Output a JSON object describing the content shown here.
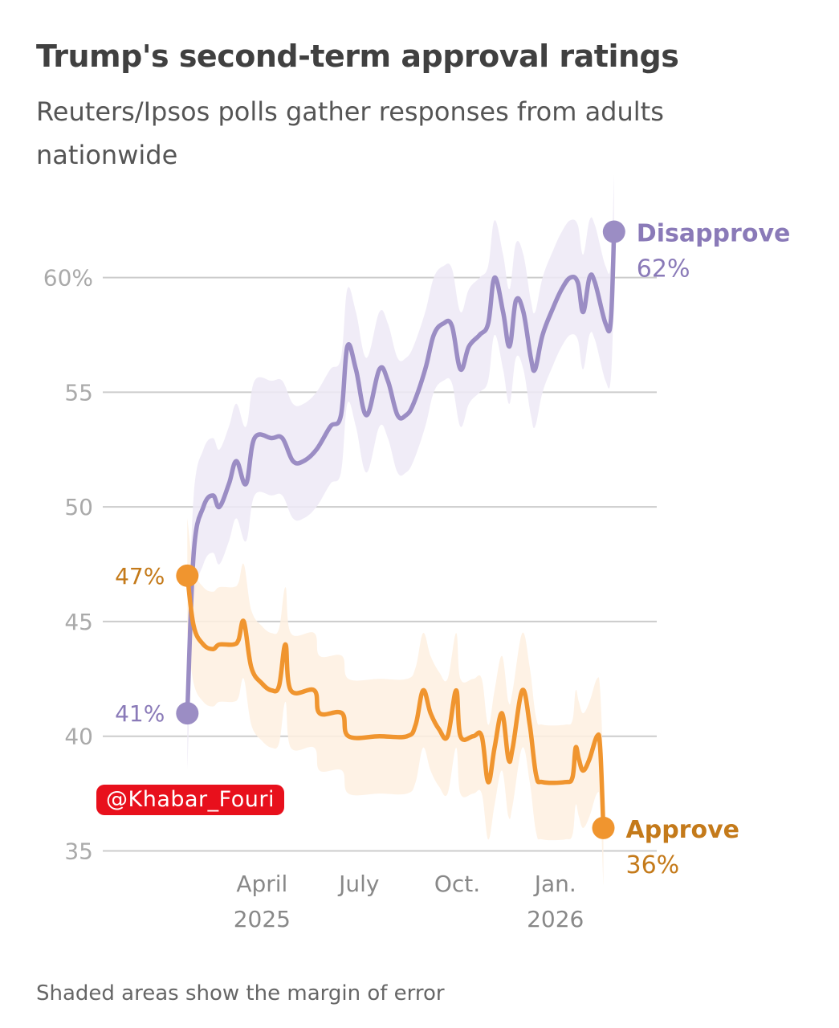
{
  "title": "Trump's second-term approval ratings",
  "subtitle": "Reuters/Ipsos polls gather responses from adults nationwide",
  "footnote": "Shaded areas show the margin of error",
  "watermark": "@Khabar_Fouri",
  "colors": {
    "disapprove": "#9b8dc4",
    "disapprove_band": "#ede9f6",
    "approve": "#f0952f",
    "approve_band": "#fef0e0",
    "approve_label": "#c47a1a",
    "disapprove_label": "#8a7ab8",
    "grid": "#cccccc"
  },
  "chart_data": {
    "type": "line",
    "x_unit": "date",
    "ylim": [
      34,
      63
    ],
    "yticks": [
      {
        "value": 60,
        "label": "60%"
      },
      {
        "value": 55,
        "label": "55"
      },
      {
        "value": 50,
        "label": "50"
      },
      {
        "value": 45,
        "label": "45"
      },
      {
        "value": 40,
        "label": "40"
      },
      {
        "value": 35,
        "label": "35"
      }
    ],
    "xlim": [
      "2025-01-20",
      "2026-03-25"
    ],
    "xticks": [
      {
        "date": "2025-04-01",
        "line1": "April",
        "line2": "2025"
      },
      {
        "date": "2025-07-01",
        "line1": "July",
        "line2": ""
      },
      {
        "date": "2025-10-01",
        "line1": "Oct.",
        "line2": ""
      },
      {
        "date": "2026-01-01",
        "line1": "Jan.",
        "line2": "2026"
      }
    ],
    "grid": true,
    "series": [
      {
        "name": "Disapprove",
        "end_label": "62%",
        "start_label": "41%",
        "margin_of_error": 2.5,
        "points": [
          [
            "2025-01-21",
            41
          ],
          [
            "2025-01-27",
            48
          ],
          [
            "2025-02-05",
            50
          ],
          [
            "2025-02-14",
            50.5
          ],
          [
            "2025-02-20",
            50
          ],
          [
            "2025-03-01",
            51
          ],
          [
            "2025-03-08",
            52
          ],
          [
            "2025-03-17",
            51
          ],
          [
            "2025-03-25",
            53
          ],
          [
            "2025-04-10",
            53
          ],
          [
            "2025-04-20",
            53
          ],
          [
            "2025-04-30",
            52
          ],
          [
            "2025-05-10",
            52
          ],
          [
            "2025-05-22",
            52.5
          ],
          [
            "2025-06-04",
            53.5
          ],
          [
            "2025-06-14",
            54
          ],
          [
            "2025-06-20",
            57
          ],
          [
            "2025-06-28",
            56
          ],
          [
            "2025-07-08",
            54
          ],
          [
            "2025-07-20",
            56
          ],
          [
            "2025-07-28",
            55.5
          ],
          [
            "2025-08-06",
            54
          ],
          [
            "2025-08-14",
            54
          ],
          [
            "2025-08-21",
            54.5
          ],
          [
            "2025-09-01",
            56
          ],
          [
            "2025-09-09",
            57.5
          ],
          [
            "2025-09-18",
            58
          ],
          [
            "2025-09-26",
            57.9
          ],
          [
            "2025-10-04",
            56
          ],
          [
            "2025-10-12",
            57
          ],
          [
            "2025-10-22",
            57.5
          ],
          [
            "2025-10-30",
            58
          ],
          [
            "2025-11-05",
            60
          ],
          [
            "2025-11-13",
            58.5
          ],
          [
            "2025-11-19",
            57
          ],
          [
            "2025-11-25",
            59
          ],
          [
            "2025-12-02",
            58.5
          ],
          [
            "2025-12-09",
            56.5
          ],
          [
            "2025-12-13",
            56
          ],
          [
            "2025-12-20",
            57.5
          ],
          [
            "2025-12-30",
            58.7
          ],
          [
            "2026-01-07",
            59.5
          ],
          [
            "2026-01-15",
            60
          ],
          [
            "2026-01-22",
            59.8
          ],
          [
            "2026-01-27",
            58.5
          ],
          [
            "2026-02-02",
            60
          ],
          [
            "2026-02-07",
            59.8
          ],
          [
            "2026-02-17",
            58
          ],
          [
            "2026-02-22",
            58.1
          ],
          [
            "2026-02-25",
            62
          ]
        ]
      },
      {
        "name": "Approve",
        "end_label": "36%",
        "start_label": "47%",
        "margin_of_error": 2.5,
        "points": [
          [
            "2025-01-21",
            47
          ],
          [
            "2025-01-27",
            44.8
          ],
          [
            "2025-02-05",
            44
          ],
          [
            "2025-02-14",
            43.8
          ],
          [
            "2025-02-20",
            44
          ],
          [
            "2025-03-05",
            44
          ],
          [
            "2025-03-10",
            44.2
          ],
          [
            "2025-03-15",
            45
          ],
          [
            "2025-03-22",
            43
          ],
          [
            "2025-04-01",
            42.3
          ],
          [
            "2025-04-10",
            42
          ],
          [
            "2025-04-17",
            42.2
          ],
          [
            "2025-04-23",
            44
          ],
          [
            "2025-04-28",
            42
          ],
          [
            "2025-05-20",
            42
          ],
          [
            "2025-05-25",
            41
          ],
          [
            "2025-06-15",
            41
          ],
          [
            "2025-06-21",
            40
          ],
          [
            "2025-07-20",
            40
          ],
          [
            "2025-08-15",
            40
          ],
          [
            "2025-08-23",
            40.5
          ],
          [
            "2025-08-30",
            42
          ],
          [
            "2025-09-06",
            41
          ],
          [
            "2025-09-14",
            40.3
          ],
          [
            "2025-09-22",
            40
          ],
          [
            "2025-09-30",
            42
          ],
          [
            "2025-10-04",
            40
          ],
          [
            "2025-10-16",
            40
          ],
          [
            "2025-10-24",
            40
          ],
          [
            "2025-10-30",
            38
          ],
          [
            "2025-11-05",
            39.5
          ],
          [
            "2025-11-12",
            41
          ],
          [
            "2025-11-18",
            39
          ],
          [
            "2025-11-22",
            39.5
          ],
          [
            "2025-12-01",
            42
          ],
          [
            "2025-12-08",
            40.5
          ],
          [
            "2025-12-14",
            38.3
          ],
          [
            "2025-12-20",
            38
          ],
          [
            "2026-01-10",
            38
          ],
          [
            "2026-01-17",
            38.2
          ],
          [
            "2026-01-20",
            39.5
          ],
          [
            "2026-01-23",
            39
          ],
          [
            "2026-01-27",
            38.5
          ],
          [
            "2026-02-02",
            39
          ],
          [
            "2026-02-09",
            40
          ],
          [
            "2026-02-12",
            39.5
          ],
          [
            "2026-02-15",
            36
          ]
        ]
      }
    ]
  }
}
